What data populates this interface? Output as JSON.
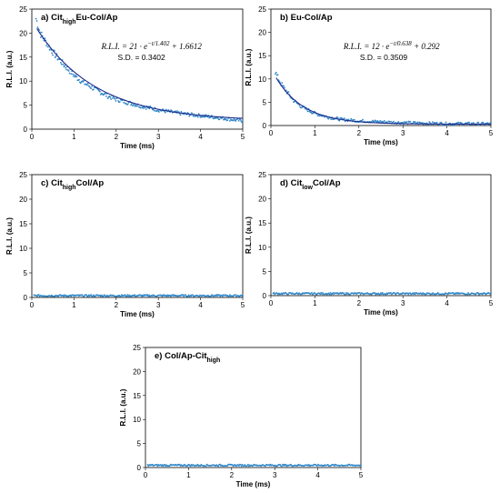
{
  "chart_data": [
    {
      "id": "a",
      "type": "scatter",
      "title": "a) Cit",
      "title_sub": "high",
      "title_rest": "Eu-Col/Ap",
      "xlabel": "Time (ms)",
      "ylabel": "R.L.I. (a.u.)",
      "xlim": [
        0,
        5
      ],
      "ylim": [
        0,
        25
      ],
      "xticks": [
        0,
        1,
        2,
        3,
        4,
        5
      ],
      "yticks": [
        0,
        5,
        10,
        15,
        20,
        25
      ],
      "grid": false,
      "fit": {
        "A": 21,
        "tau": 1.402,
        "c": 1.6612
      },
      "equation": {
        "lhs": "R.L.I. = 21 · e",
        "exp": "−t/1.402",
        "rhs": " + 1.6612"
      },
      "sd": "S.D. = 0.3402",
      "series": [
        {
          "x": [
            0.1,
            0.2,
            0.3,
            0.4,
            0.5,
            0.6,
            0.8,
            1.0,
            1.2,
            1.5,
            1.8,
            2.0,
            2.5,
            3.0,
            3.5,
            4.0,
            4.5,
            5.0
          ],
          "y": [
            23.0,
            20.0,
            18.6,
            17.3,
            16.0,
            15.0,
            13.0,
            11.2,
            9.8,
            8.3,
            6.9,
            6.2,
            5.0,
            4.0,
            3.3,
            2.8,
            2.3,
            1.7
          ]
        }
      ]
    },
    {
      "id": "b",
      "type": "scatter",
      "title": "b) Eu-Col/Ap",
      "title_sub": "",
      "title_rest": "",
      "xlabel": "Time (ms)",
      "ylabel": "R.L.I. (a.u.)",
      "xlim": [
        0,
        5
      ],
      "ylim": [
        0,
        25
      ],
      "xticks": [
        0,
        1,
        2,
        3,
        4,
        5
      ],
      "yticks": [
        0,
        5,
        10,
        15,
        20,
        25
      ],
      "grid": false,
      "fit": {
        "A": 12,
        "tau": 0.638,
        "c": 0.292
      },
      "equation": {
        "lhs": "R.L.I. = 12 · e",
        "exp": "−t/0.638",
        "rhs": " + 0.292"
      },
      "sd": "S.D. = 0.3509",
      "series": [
        {
          "x": [
            0.1,
            0.2,
            0.3,
            0.4,
            0.5,
            0.7,
            1.0,
            1.3,
            1.6,
            2.0,
            2.5,
            3.0,
            3.5,
            4.0,
            4.5,
            5.0
          ],
          "y": [
            11.5,
            9.5,
            8.0,
            6.8,
            5.5,
            4.0,
            2.6,
            1.8,
            1.3,
            1.0,
            0.8,
            0.6,
            0.5,
            0.4,
            0.4,
            0.35
          ]
        }
      ]
    },
    {
      "id": "c",
      "type": "scatter",
      "title": "c) Cit",
      "title_sub": "high",
      "title_rest": "Col/Ap",
      "xlabel": "Time (ms)",
      "ylabel": "R.L.I. (a.u.)",
      "xlim": [
        0,
        5
      ],
      "ylim": [
        0,
        25
      ],
      "xticks": [
        0,
        1,
        2,
        3,
        4,
        5
      ],
      "yticks": [
        0,
        5,
        10,
        15,
        20,
        25
      ],
      "grid": false,
      "sd": "",
      "series": [
        {
          "x": [
            0,
            5
          ],
          "y": [
            0.3,
            0.3
          ]
        }
      ]
    },
    {
      "id": "d",
      "type": "scatter",
      "title": "d) Cit",
      "title_sub": "low",
      "title_rest": "Col/Ap",
      "xlabel": "Time (ms)",
      "ylabel": "R.L.I. (a.u.)",
      "xlim": [
        0,
        5
      ],
      "ylim": [
        0,
        25
      ],
      "xticks": [
        0,
        1,
        2,
        3,
        4,
        5
      ],
      "yticks": [
        0,
        5,
        10,
        15,
        20,
        25
      ],
      "grid": false,
      "sd": "",
      "series": [
        {
          "x": [
            0,
            5
          ],
          "y": [
            0.35,
            0.35
          ]
        }
      ]
    },
    {
      "id": "e",
      "type": "scatter",
      "title": "e) Col/Ap-Cit",
      "title_sub": "high",
      "title_rest": "",
      "xlabel": "Time (ms)",
      "ylabel": "R.L.I. (a.u.)",
      "xlim": [
        0,
        5
      ],
      "ylim": [
        0,
        25
      ],
      "xticks": [
        0,
        1,
        2,
        3,
        4,
        5
      ],
      "yticks": [
        0,
        5,
        10,
        15,
        20,
        25
      ],
      "grid": false,
      "sd": "",
      "series": [
        {
          "x": [
            0,
            5
          ],
          "y": [
            0.4,
            0.4
          ]
        }
      ]
    }
  ],
  "colors": {
    "points": "#2e86c8",
    "fit": "#1f2a8a",
    "frame": "#000000"
  }
}
